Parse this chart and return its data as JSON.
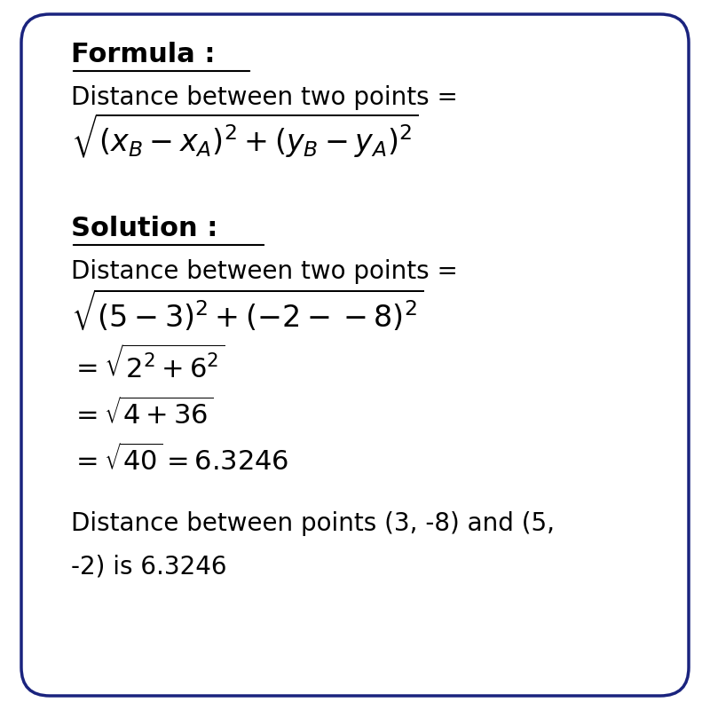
{
  "bg_color": "#ffffff",
  "border_color": "#1a237e",
  "text_color": "#000000",
  "figsize": [
    8.0,
    8.0
  ],
  "dpi": 100,
  "formula_label": "Formula :",
  "solution_label": "Solution :",
  "dist_text1": "Distance between two points =",
  "dist_text2": "Distance between two points =",
  "formula_latex": "$\\sqrt{(x_B - x_A)^2 + (y_B - y_A)^2}$",
  "step1_latex": "$\\sqrt{(5-3)^2 + (-2 - -8)^2}$",
  "step2_latex": "$= \\sqrt{2^2 + 6^2}$",
  "step3_latex": "$= \\sqrt{4 + 36}$",
  "step4_latex": "$= \\sqrt{40} = 6.3246$",
  "final_text1": "Distance between points (3, -8) and (5,",
  "final_text2": "-2) is 6.3246"
}
